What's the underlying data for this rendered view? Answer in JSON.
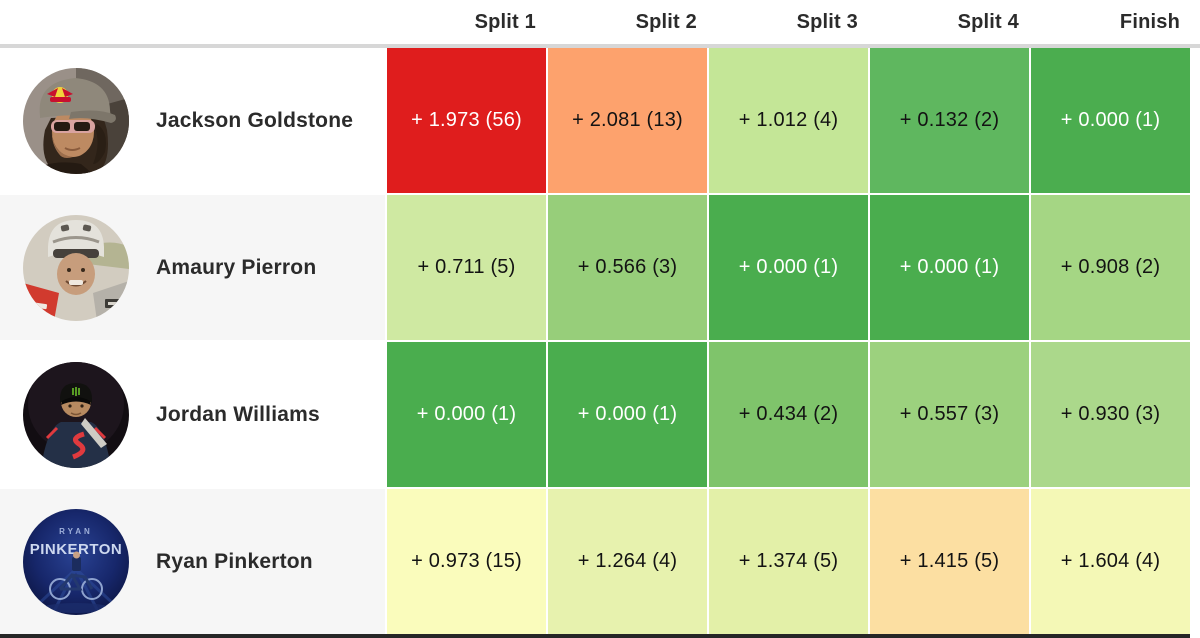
{
  "table": {
    "column_headers": [
      "Split 1",
      "Split 2",
      "Split 3",
      "Split 4",
      "Finish"
    ],
    "rows": [
      {
        "rider": "Jackson Goldstone",
        "avatar": "jackson-goldstone",
        "row_bg": "#ffffff",
        "cells": [
          {
            "text": "+ 1.973 (56)",
            "bg": "#df1d1d",
            "fg": "#ffffff"
          },
          {
            "text": "+ 2.081 (13)",
            "bg": "#fda26d",
            "fg": "#131313"
          },
          {
            "text": "+ 1.012 (4)",
            "bg": "#c4e697",
            "fg": "#131313"
          },
          {
            "text": "+ 0.132 (2)",
            "bg": "#5fb75f",
            "fg": "#131313"
          },
          {
            "text": "+ 0.000 (1)",
            "bg": "#4bad4f",
            "fg": "#ffffff"
          }
        ]
      },
      {
        "rider": "Amaury Pierron",
        "avatar": "amaury-pierron",
        "row_bg": "#f6f6f6",
        "cells": [
          {
            "text": "+ 0.711 (5)",
            "bg": "#cfe9a2",
            "fg": "#131313"
          },
          {
            "text": "+ 0.566 (3)",
            "bg": "#97ce7a",
            "fg": "#131313"
          },
          {
            "text": "+ 0.000 (1)",
            "bg": "#4aad4e",
            "fg": "#ffffff"
          },
          {
            "text": "+ 0.000 (1)",
            "bg": "#4aad4e",
            "fg": "#ffffff"
          },
          {
            "text": "+ 0.908 (2)",
            "bg": "#a5d684",
            "fg": "#131313"
          }
        ]
      },
      {
        "rider": "Jordan Williams",
        "avatar": "jordan-williams",
        "row_bg": "#ffffff",
        "cells": [
          {
            "text": "+ 0.000 (1)",
            "bg": "#4aad4e",
            "fg": "#ffffff"
          },
          {
            "text": "+ 0.000 (1)",
            "bg": "#4aad4e",
            "fg": "#ffffff"
          },
          {
            "text": "+ 0.434 (2)",
            "bg": "#7fc46b",
            "fg": "#131313"
          },
          {
            "text": "+ 0.557 (3)",
            "bg": "#9cd17e",
            "fg": "#131313"
          },
          {
            "text": "+ 0.930 (3)",
            "bg": "#abd88b",
            "fg": "#131313"
          }
        ]
      },
      {
        "rider": "Ryan Pinkerton",
        "avatar": "ryan-pinkerton",
        "avatar_caption": [
          "RYAN",
          "PINKERTON"
        ],
        "row_bg": "#f6f6f6",
        "cells": [
          {
            "text": "+ 0.973 (15)",
            "bg": "#fafcbc",
            "fg": "#131313"
          },
          {
            "text": "+ 1.264 (4)",
            "bg": "#e7f2ae",
            "fg": "#131313"
          },
          {
            "text": "+ 1.374 (5)",
            "bg": "#e3f0a8",
            "fg": "#131313"
          },
          {
            "text": "+ 1.415 (5)",
            "bg": "#fcdfa2",
            "fg": "#131313"
          },
          {
            "text": "+ 1.604 (4)",
            "bg": "#f4f8b6",
            "fg": "#131313"
          }
        ]
      }
    ],
    "colors": {
      "header_divider": "#d7d7d7",
      "bottom_bar": "#262626",
      "row_bg": "#ffffff",
      "row_alt_bg": "#f6f6f6",
      "best_green": "#4aad4e",
      "worst_red": "#df1d1d"
    }
  }
}
